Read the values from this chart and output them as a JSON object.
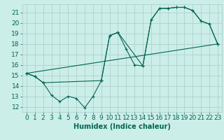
{
  "xlabel": "Humidex (Indice chaleur)",
  "bg_color": "#cceee8",
  "grid_color": "#aacccc",
  "line_color": "#006655",
  "xlim": [
    -0.5,
    23.5
  ],
  "ylim": [
    11.5,
    21.8
  ],
  "yticks": [
    12,
    13,
    14,
    15,
    16,
    17,
    18,
    19,
    20,
    21
  ],
  "xticks": [
    0,
    1,
    2,
    3,
    4,
    5,
    6,
    7,
    8,
    9,
    10,
    11,
    12,
    13,
    14,
    15,
    16,
    17,
    18,
    19,
    20,
    21,
    22,
    23
  ],
  "line1_x": [
    0,
    1,
    2,
    3,
    4,
    5,
    6,
    7,
    8,
    9,
    10,
    11,
    12,
    13,
    14,
    15,
    16,
    17,
    18,
    19,
    20,
    21,
    22,
    23
  ],
  "line1_y": [
    15.2,
    14.9,
    14.3,
    13.1,
    12.5,
    13.0,
    12.8,
    11.9,
    13.0,
    14.5,
    18.8,
    19.1,
    17.5,
    16.0,
    15.9,
    20.3,
    21.4,
    21.4,
    21.5,
    21.5,
    21.2,
    20.2,
    19.9,
    18.0
  ],
  "line2_x": [
    0,
    1,
    2,
    9,
    10,
    11,
    14,
    15,
    16,
    17,
    18,
    19,
    20,
    21,
    22,
    23
  ],
  "line2_y": [
    15.2,
    14.9,
    14.3,
    14.5,
    18.8,
    19.1,
    15.9,
    20.3,
    21.4,
    21.4,
    21.5,
    21.5,
    21.2,
    20.2,
    19.9,
    18.0
  ],
  "line3_x": [
    0,
    23
  ],
  "line3_y": [
    15.2,
    18.0
  ],
  "font_size": 6.5,
  "lw": 0.8
}
